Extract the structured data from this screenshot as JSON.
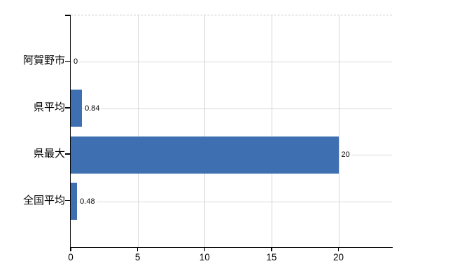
{
  "chart_data": {
    "type": "bar",
    "orientation": "horizontal",
    "title": "",
    "xlabel": "",
    "ylabel": "",
    "categories": [
      "阿賀野市",
      "県平均",
      "県最大",
      "全国平均"
    ],
    "values": [
      0,
      0.84,
      20,
      0.48
    ],
    "value_labels": [
      "0",
      "0.84",
      "20",
      "0.48"
    ],
    "x_ticks": [
      0,
      5,
      10,
      15,
      20
    ],
    "x_tick_labels": [
      "0",
      "5",
      "10",
      "15",
      "20"
    ],
    "xlim": [
      0,
      24
    ],
    "grid": true,
    "legend": false,
    "colors": {
      "bar": "#3e6fb0",
      "vertical_grid": "#d6d6d6",
      "horizontal_grid": "#d3dad3",
      "axis": "#000000",
      "text": "#000000",
      "background": "#ffffff",
      "plot_top_border": "#c9c9c9"
    }
  }
}
